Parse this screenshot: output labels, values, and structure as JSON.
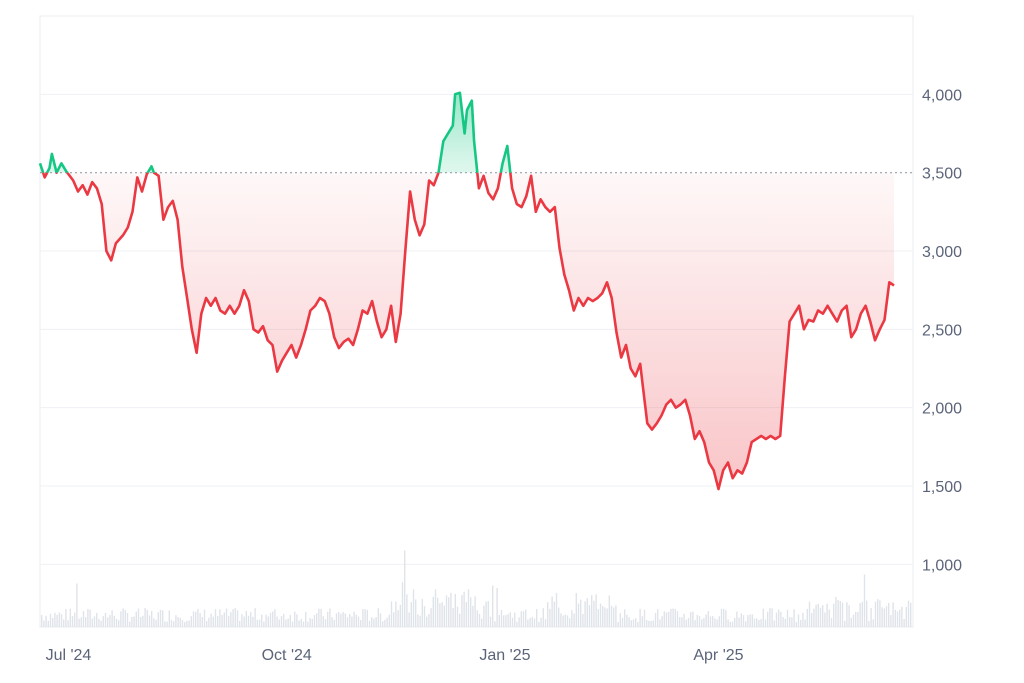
{
  "chart_data": {
    "type": "line",
    "baseline": 3500,
    "ylim": [
      600,
      4500
    ],
    "y_ticks": [
      {
        "value": 4000,
        "label": "4,000"
      },
      {
        "value": 3500,
        "label": "3,500"
      },
      {
        "value": 3000,
        "label": "3,000"
      },
      {
        "value": 2500,
        "label": "2,500"
      },
      {
        "value": 2000,
        "label": "2,000"
      },
      {
        "value": 1500,
        "label": "1,500"
      },
      {
        "value": 1000,
        "label": "1,000"
      }
    ],
    "x_ticks": [
      {
        "date": "2024-07-01",
        "label": "Jul '24"
      },
      {
        "date": "2024-10-01",
        "label": "Oct '24"
      },
      {
        "date": "2025-01-01",
        "label": "Jan '25"
      },
      {
        "date": "2025-04-01",
        "label": "Apr '25"
      }
    ],
    "xlim": [
      "2024-06-19",
      "2025-06-22"
    ],
    "colors": {
      "above": "#16c784",
      "below": "#ea3943",
      "grid": "#eef0f4",
      "baseline": "#9aa0ad",
      "volume": "#dfe3ea"
    },
    "series": [
      {
        "points": [
          [
            "2024-06-19",
            3560
          ],
          [
            "2024-06-21",
            3470
          ],
          [
            "2024-06-23",
            3530
          ],
          [
            "2024-06-24",
            3620
          ],
          [
            "2024-06-26",
            3500
          ],
          [
            "2024-06-28",
            3560
          ],
          [
            "2024-06-30",
            3510
          ],
          [
            "2024-07-03",
            3450
          ],
          [
            "2024-07-05",
            3380
          ],
          [
            "2024-07-07",
            3420
          ],
          [
            "2024-07-09",
            3360
          ],
          [
            "2024-07-11",
            3440
          ],
          [
            "2024-07-13",
            3400
          ],
          [
            "2024-07-15",
            3300
          ],
          [
            "2024-07-17",
            3000
          ],
          [
            "2024-07-19",
            2940
          ],
          [
            "2024-07-21",
            3050
          ],
          [
            "2024-07-24",
            3100
          ],
          [
            "2024-07-26",
            3150
          ],
          [
            "2024-07-28",
            3250
          ],
          [
            "2024-07-30",
            3470
          ],
          [
            "2024-08-01",
            3380
          ],
          [
            "2024-08-03",
            3490
          ],
          [
            "2024-08-05",
            3540
          ],
          [
            "2024-08-06",
            3500
          ],
          [
            "2024-08-08",
            3480
          ],
          [
            "2024-08-10",
            3200
          ],
          [
            "2024-08-12",
            3280
          ],
          [
            "2024-08-14",
            3320
          ],
          [
            "2024-08-16",
            3200
          ],
          [
            "2024-08-18",
            2900
          ],
          [
            "2024-08-20",
            2700
          ],
          [
            "2024-08-22",
            2500
          ],
          [
            "2024-08-24",
            2350
          ],
          [
            "2024-08-26",
            2600
          ],
          [
            "2024-08-28",
            2700
          ],
          [
            "2024-08-30",
            2650
          ],
          [
            "2024-09-01",
            2700
          ],
          [
            "2024-09-03",
            2620
          ],
          [
            "2024-09-05",
            2600
          ],
          [
            "2024-09-07",
            2650
          ],
          [
            "2024-09-09",
            2600
          ],
          [
            "2024-09-11",
            2650
          ],
          [
            "2024-09-13",
            2750
          ],
          [
            "2024-09-15",
            2680
          ],
          [
            "2024-09-17",
            2500
          ],
          [
            "2024-09-19",
            2480
          ],
          [
            "2024-09-21",
            2520
          ],
          [
            "2024-09-23",
            2430
          ],
          [
            "2024-09-25",
            2400
          ],
          [
            "2024-09-27",
            2230
          ],
          [
            "2024-09-29",
            2300
          ],
          [
            "2024-10-01",
            2350
          ],
          [
            "2024-10-03",
            2400
          ],
          [
            "2024-10-05",
            2320
          ],
          [
            "2024-10-07",
            2400
          ],
          [
            "2024-10-09",
            2500
          ],
          [
            "2024-10-11",
            2620
          ],
          [
            "2024-10-13",
            2650
          ],
          [
            "2024-10-15",
            2700
          ],
          [
            "2024-10-17",
            2680
          ],
          [
            "2024-10-19",
            2600
          ],
          [
            "2024-10-21",
            2450
          ],
          [
            "2024-10-23",
            2380
          ],
          [
            "2024-10-25",
            2420
          ],
          [
            "2024-10-27",
            2440
          ],
          [
            "2024-10-29",
            2400
          ],
          [
            "2024-10-31",
            2500
          ],
          [
            "2024-11-02",
            2620
          ],
          [
            "2024-11-04",
            2600
          ],
          [
            "2024-11-06",
            2680
          ],
          [
            "2024-11-08",
            2550
          ],
          [
            "2024-11-10",
            2450
          ],
          [
            "2024-11-12",
            2500
          ],
          [
            "2024-11-14",
            2650
          ],
          [
            "2024-11-16",
            2420
          ],
          [
            "2024-11-18",
            2600
          ],
          [
            "2024-11-20",
            3000
          ],
          [
            "2024-11-22",
            3380
          ],
          [
            "2024-11-24",
            3200
          ],
          [
            "2024-11-26",
            3100
          ],
          [
            "2024-11-28",
            3170
          ],
          [
            "2024-11-30",
            3450
          ],
          [
            "2024-12-02",
            3420
          ],
          [
            "2024-12-04",
            3500
          ],
          [
            "2024-12-06",
            3700
          ],
          [
            "2024-12-08",
            3750
          ],
          [
            "2024-12-10",
            3800
          ],
          [
            "2024-12-11",
            4000
          ],
          [
            "2024-12-13",
            4010
          ],
          [
            "2024-12-15",
            3750
          ],
          [
            "2024-12-16",
            3900
          ],
          [
            "2024-12-18",
            3960
          ],
          [
            "2024-12-19",
            3700
          ],
          [
            "2024-12-21",
            3400
          ],
          [
            "2024-12-23",
            3480
          ],
          [
            "2024-12-25",
            3370
          ],
          [
            "2024-12-27",
            3330
          ],
          [
            "2024-12-29",
            3400
          ],
          [
            "2024-12-31",
            3560
          ],
          [
            "2025-01-02",
            3670
          ],
          [
            "2025-01-04",
            3400
          ],
          [
            "2025-01-06",
            3300
          ],
          [
            "2025-01-08",
            3280
          ],
          [
            "2025-01-10",
            3350
          ],
          [
            "2025-01-12",
            3480
          ],
          [
            "2025-01-14",
            3250
          ],
          [
            "2025-01-16",
            3330
          ],
          [
            "2025-01-18",
            3280
          ],
          [
            "2025-01-20",
            3250
          ],
          [
            "2025-01-22",
            3280
          ],
          [
            "2025-01-24",
            3020
          ],
          [
            "2025-01-26",
            2850
          ],
          [
            "2025-01-28",
            2750
          ],
          [
            "2025-01-30",
            2620
          ],
          [
            "2025-02-01",
            2700
          ],
          [
            "2025-02-03",
            2650
          ],
          [
            "2025-02-05",
            2700
          ],
          [
            "2025-02-07",
            2680
          ],
          [
            "2025-02-09",
            2700
          ],
          [
            "2025-02-11",
            2730
          ],
          [
            "2025-02-13",
            2800
          ],
          [
            "2025-02-15",
            2700
          ],
          [
            "2025-02-17",
            2480
          ],
          [
            "2025-02-19",
            2320
          ],
          [
            "2025-02-21",
            2400
          ],
          [
            "2025-02-23",
            2250
          ],
          [
            "2025-02-25",
            2200
          ],
          [
            "2025-02-27",
            2280
          ],
          [
            "2025-02-28",
            2150
          ],
          [
            "2025-03-02",
            1900
          ],
          [
            "2025-03-04",
            1860
          ],
          [
            "2025-03-06",
            1900
          ],
          [
            "2025-03-08",
            1950
          ],
          [
            "2025-03-10",
            2020
          ],
          [
            "2025-03-12",
            2050
          ],
          [
            "2025-03-14",
            2000
          ],
          [
            "2025-03-16",
            2020
          ],
          [
            "2025-03-18",
            2050
          ],
          [
            "2025-03-20",
            1950
          ],
          [
            "2025-03-22",
            1800
          ],
          [
            "2025-03-24",
            1850
          ],
          [
            "2025-03-26",
            1780
          ],
          [
            "2025-03-28",
            1650
          ],
          [
            "2025-03-30",
            1600
          ],
          [
            "2025-04-01",
            1480
          ],
          [
            "2025-04-03",
            1600
          ],
          [
            "2025-04-05",
            1650
          ],
          [
            "2025-04-07",
            1550
          ],
          [
            "2025-04-09",
            1600
          ],
          [
            "2025-04-11",
            1580
          ],
          [
            "2025-04-13",
            1650
          ],
          [
            "2025-04-15",
            1780
          ],
          [
            "2025-04-17",
            1800
          ],
          [
            "2025-04-19",
            1820
          ],
          [
            "2025-04-21",
            1800
          ],
          [
            "2025-04-23",
            1820
          ],
          [
            "2025-04-25",
            1800
          ],
          [
            "2025-04-27",
            1820
          ],
          [
            "2025-04-29",
            2200
          ],
          [
            "2025-05-01",
            2550
          ],
          [
            "2025-05-03",
            2600
          ],
          [
            "2025-05-05",
            2650
          ],
          [
            "2025-05-07",
            2500
          ],
          [
            "2025-05-09",
            2560
          ],
          [
            "2025-05-11",
            2550
          ],
          [
            "2025-05-13",
            2620
          ],
          [
            "2025-05-15",
            2600
          ],
          [
            "2025-05-17",
            2650
          ],
          [
            "2025-05-19",
            2600
          ],
          [
            "2025-05-21",
            2550
          ],
          [
            "2025-05-23",
            2620
          ],
          [
            "2025-05-25",
            2650
          ],
          [
            "2025-05-27",
            2450
          ],
          [
            "2025-05-29",
            2500
          ],
          [
            "2025-05-31",
            2600
          ],
          [
            "2025-06-02",
            2650
          ],
          [
            "2025-06-04",
            2550
          ],
          [
            "2025-06-06",
            2430
          ],
          [
            "2025-06-08",
            2500
          ],
          [
            "2025-06-10",
            2560
          ],
          [
            "2025-06-12",
            2800
          ],
          [
            "2025-06-14",
            2780
          ]
        ]
      }
    ]
  }
}
